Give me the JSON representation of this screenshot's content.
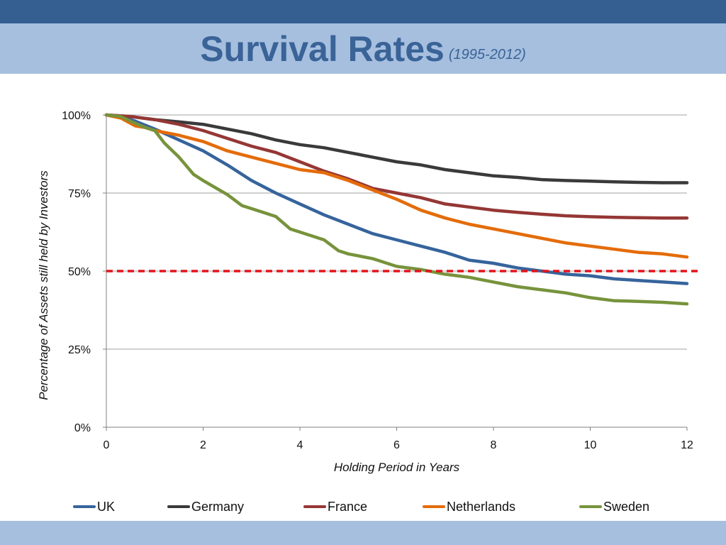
{
  "slide": {
    "title": "Survival Rates",
    "subtitle": "(1995-2012)",
    "colors": {
      "top_bar": "#355f91",
      "band": "#a6bfdf",
      "title": "#3a6397"
    }
  },
  "chart_data": {
    "type": "line",
    "title": "",
    "xlabel": "Holding Period in Years",
    "ylabel": "Percentage of Assets still held by Investors",
    "xlim": [
      0,
      12
    ],
    "ylim": [
      0,
      100
    ],
    "x_ticks": [
      0,
      2,
      4,
      6,
      8,
      10,
      12
    ],
    "x_tick_labels": [
      "0",
      "2",
      "4",
      "6",
      "8",
      "10",
      "12"
    ],
    "y_ticks": [
      0,
      25,
      50,
      75,
      100
    ],
    "y_tick_labels": [
      "0%",
      "25%",
      "50%",
      "75%",
      "100%"
    ],
    "grid": "horizontal",
    "legend_position": "bottom",
    "reference_line": {
      "y": 50,
      "color": "#e3131b",
      "style": "dashed"
    },
    "series": [
      {
        "name": "UK",
        "color": "#36649c",
        "x": [
          0,
          0.3,
          0.6,
          1.0,
          1.5,
          2.0,
          2.5,
          3.0,
          3.5,
          4.0,
          4.5,
          5.0,
          5.5,
          6.0,
          6.5,
          7.0,
          7.5,
          8.0,
          8.5,
          9.0,
          9.5,
          10.0,
          10.5,
          11.0,
          11.5,
          12.0
        ],
        "y": [
          100,
          99.5,
          98,
          95.5,
          92,
          88.5,
          84,
          79,
          75,
          71.5,
          68,
          65,
          62,
          60,
          58,
          56,
          53.5,
          52.5,
          51,
          50,
          49,
          48.5,
          47.5,
          47,
          46.5,
          46
        ]
      },
      {
        "name": "Germany",
        "color": "#3a3a3a",
        "x": [
          0,
          0.5,
          1.0,
          1.5,
          2.0,
          2.5,
          3.0,
          3.5,
          4.0,
          4.5,
          5.0,
          5.5,
          6.0,
          6.5,
          7.0,
          7.5,
          8.0,
          8.5,
          9.0,
          9.5,
          10.0,
          10.5,
          11.0,
          11.5,
          12.0
        ],
        "y": [
          100,
          99.5,
          98.5,
          97.8,
          97,
          95.5,
          94,
          92,
          90.5,
          89.5,
          88,
          86.5,
          85,
          84,
          82.5,
          81.5,
          80.5,
          80,
          79.3,
          79,
          78.8,
          78.6,
          78.4,
          78.3,
          78.3
        ]
      },
      {
        "name": "France",
        "color": "#953735",
        "x": [
          0,
          0.5,
          1.0,
          1.5,
          2.0,
          2.5,
          3.0,
          3.5,
          4.0,
          4.5,
          5.0,
          5.5,
          6.0,
          6.5,
          7.0,
          7.5,
          8.0,
          8.5,
          9.0,
          9.5,
          10.0,
          10.5,
          11.0,
          11.5,
          12.0
        ],
        "y": [
          100,
          99.5,
          98.5,
          97,
          95,
          92.5,
          90,
          88,
          85,
          82,
          79.5,
          76.5,
          75,
          73.5,
          71.5,
          70.5,
          69.5,
          68.8,
          68.2,
          67.7,
          67.4,
          67.2,
          67.1,
          67,
          67
        ]
      },
      {
        "name": "Netherlands",
        "color": "#e46c0a",
        "x": [
          0,
          0.3,
          0.6,
          0.8,
          1.0,
          1.5,
          2.0,
          2.5,
          3.0,
          3.5,
          4.0,
          4.5,
          5.0,
          5.5,
          6.0,
          6.5,
          7.0,
          7.5,
          8.0,
          8.5,
          9.0,
          9.5,
          10.0,
          10.5,
          11.0,
          11.5,
          12.0
        ],
        "y": [
          100,
          99,
          96.5,
          96,
          95,
          93.5,
          91.5,
          88.5,
          86.5,
          84.5,
          82.5,
          81.5,
          79,
          76,
          73,
          69.5,
          67,
          65,
          63.5,
          62,
          60.5,
          59,
          58,
          57,
          56,
          55.5,
          54.5
        ]
      },
      {
        "name": "Sweden",
        "color": "#77933c",
        "x": [
          0,
          0.3,
          0.5,
          0.8,
          1.0,
          1.2,
          1.5,
          1.8,
          2.0,
          2.5,
          2.8,
          3.0,
          3.5,
          3.8,
          4.0,
          4.5,
          4.8,
          5.0,
          5.5,
          6.0,
          6.5,
          7.0,
          7.5,
          8.0,
          8.5,
          9.0,
          9.5,
          10.0,
          10.5,
          11.0,
          11.5,
          12.0
        ],
        "y": [
          100,
          99.5,
          98,
          96,
          95,
          91,
          86.5,
          81,
          79,
          74.5,
          71,
          70,
          67.5,
          63.5,
          62.5,
          60,
          56.5,
          55.5,
          54,
          51.5,
          50.5,
          49,
          48,
          46.5,
          45,
          44,
          43,
          41.5,
          40.5,
          40.3,
          40,
          39.5
        ]
      }
    ]
  }
}
